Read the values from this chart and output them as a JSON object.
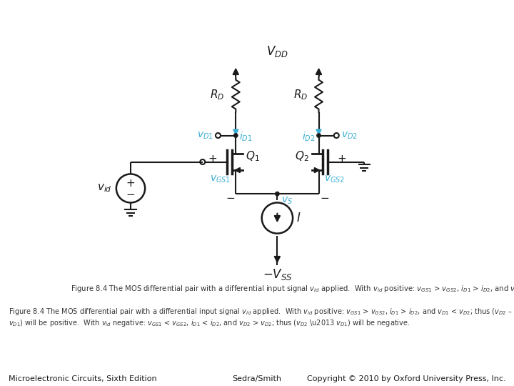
{
  "footer_left": "Microelectronic Circuits, Sixth Edition",
  "footer_center": "Sedra/Smith",
  "footer_right": "Copyright © 2010 by Oxford University Press, Inc.",
  "cyan": "#3BAED4",
  "black": "#1a1a1a",
  "bg": "#ffffff",
  "caption": "Figure 8.4 The MOS differential pair with a differential input signal vid applied.  With vid positive: vGS1 > vGS2, iD1 > iD2, and vD1 < vD2; thus\n(vD2 – vD1) will be positive.  With vid negative: vGS1 < vGS2, iD1 < iD2, and vD2 > vD2; thus (vD2 –  vD1) will be negative."
}
